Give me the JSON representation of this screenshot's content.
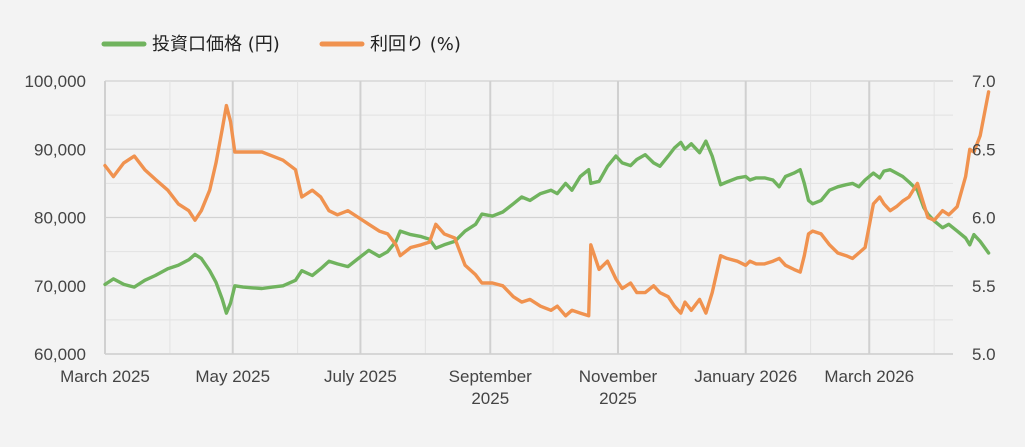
{
  "chart_data": {
    "type": "line",
    "title": "",
    "legend_position": "top-left",
    "grid": true,
    "x_axis": {
      "range": [
        "2025-03-01",
        "2026-04-10"
      ],
      "ticks": [
        {
          "date": "2025-03-01",
          "label": [
            "March 2025"
          ]
        },
        {
          "date": "2025-05-01",
          "label": [
            "May 2025"
          ]
        },
        {
          "date": "2025-07-01",
          "label": [
            "July 2025"
          ]
        },
        {
          "date": "2025-09-01",
          "label": [
            "September",
            "2025"
          ]
        },
        {
          "date": "2025-11-01",
          "label": [
            "November",
            "2025"
          ]
        },
        {
          "date": "2026-01-01",
          "label": [
            "January 2026"
          ]
        },
        {
          "date": "2026-03-01",
          "label": [
            "March 2026"
          ]
        }
      ]
    },
    "y_left": {
      "ylim": [
        60000,
        100000
      ],
      "ticks": [
        60000,
        70000,
        80000,
        90000,
        100000
      ],
      "tick_labels": [
        "60,000",
        "70,000",
        "80,000",
        "90,000",
        "100,000"
      ]
    },
    "y_right": {
      "ylim": [
        5.0,
        7.0
      ],
      "ticks": [
        5.0,
        5.5,
        6.0,
        6.5,
        7.0
      ],
      "tick_labels": [
        "5.0",
        "5.5",
        "6.0",
        "6.5",
        "7.0"
      ]
    },
    "series": [
      {
        "name": "投資口価格 (円)",
        "axis": "left",
        "color": "#70b35e",
        "points": [
          [
            "2025-03-01",
            70200
          ],
          [
            "2025-03-05",
            71000
          ],
          [
            "2025-03-10",
            70200
          ],
          [
            "2025-03-15",
            69800
          ],
          [
            "2025-03-20",
            70800
          ],
          [
            "2025-03-25",
            71500
          ],
          [
            "2025-03-31",
            72500
          ],
          [
            "2025-04-05",
            73000
          ],
          [
            "2025-04-10",
            73800
          ],
          [
            "2025-04-13",
            74600
          ],
          [
            "2025-04-16",
            74000
          ],
          [
            "2025-04-20",
            72200
          ],
          [
            "2025-04-23",
            70500
          ],
          [
            "2025-04-26",
            68000
          ],
          [
            "2025-04-28",
            66000
          ],
          [
            "2025-04-30",
            67500
          ],
          [
            "2025-05-02",
            70000
          ],
          [
            "2025-05-06",
            69800
          ],
          [
            "2025-05-10",
            69700
          ],
          [
            "2025-05-15",
            69600
          ],
          [
            "2025-05-20",
            69800
          ],
          [
            "2025-05-25",
            70000
          ],
          [
            "2025-05-31",
            70800
          ],
          [
            "2025-06-03",
            72200
          ],
          [
            "2025-06-08",
            71500
          ],
          [
            "2025-06-12",
            72500
          ],
          [
            "2025-06-16",
            73600
          ],
          [
            "2025-06-20",
            73200
          ],
          [
            "2025-06-25",
            72800
          ],
          [
            "2025-06-30",
            74000
          ],
          [
            "2025-07-05",
            75200
          ],
          [
            "2025-07-10",
            74300
          ],
          [
            "2025-07-14",
            75000
          ],
          [
            "2025-07-18",
            76500
          ],
          [
            "2025-07-20",
            78000
          ],
          [
            "2025-07-25",
            77500
          ],
          [
            "2025-07-30",
            77200
          ],
          [
            "2025-08-03",
            76800
          ],
          [
            "2025-08-06",
            75500
          ],
          [
            "2025-08-10",
            76000
          ],
          [
            "2025-08-15",
            76500
          ],
          [
            "2025-08-20",
            78000
          ],
          [
            "2025-08-25",
            79000
          ],
          [
            "2025-08-28",
            80500
          ],
          [
            "2025-09-02",
            80200
          ],
          [
            "2025-09-07",
            80800
          ],
          [
            "2025-09-12",
            82000
          ],
          [
            "2025-09-16",
            83000
          ],
          [
            "2025-09-20",
            82500
          ],
          [
            "2025-09-25",
            83500
          ],
          [
            "2025-09-30",
            84000
          ],
          [
            "2025-10-03",
            83500
          ],
          [
            "2025-10-07",
            85000
          ],
          [
            "2025-10-10",
            84000
          ],
          [
            "2025-10-14",
            86000
          ],
          [
            "2025-10-18",
            87000
          ],
          [
            "2025-10-19",
            85000
          ],
          [
            "2025-10-23",
            85300
          ],
          [
            "2025-10-27",
            87500
          ],
          [
            "2025-10-31",
            89000
          ],
          [
            "2025-11-03",
            88000
          ],
          [
            "2025-11-07",
            87600
          ],
          [
            "2025-11-10",
            88500
          ],
          [
            "2025-11-14",
            89200
          ],
          [
            "2025-11-18",
            88000
          ],
          [
            "2025-11-21",
            87500
          ],
          [
            "2025-11-25",
            89000
          ],
          [
            "2025-11-28",
            90200
          ],
          [
            "2025-12-01",
            91000
          ],
          [
            "2025-12-03",
            90000
          ],
          [
            "2025-12-06",
            90800
          ],
          [
            "2025-12-10",
            89500
          ],
          [
            "2025-12-13",
            91200
          ],
          [
            "2025-12-16",
            89000
          ],
          [
            "2025-12-20",
            84800
          ],
          [
            "2025-12-23",
            85200
          ],
          [
            "2025-12-28",
            85800
          ],
          [
            "2026-01-01",
            86000
          ],
          [
            "2026-01-03",
            85500
          ],
          [
            "2026-01-06",
            85800
          ],
          [
            "2026-01-10",
            85800
          ],
          [
            "2026-01-14",
            85500
          ],
          [
            "2026-01-17",
            84500
          ],
          [
            "2026-01-20",
            86000
          ],
          [
            "2026-01-24",
            86500
          ],
          [
            "2026-01-27",
            87000
          ],
          [
            "2026-01-29",
            85000
          ],
          [
            "2026-01-31",
            82500
          ],
          [
            "2026-02-02",
            82000
          ],
          [
            "2026-02-06",
            82500
          ],
          [
            "2026-02-10",
            84000
          ],
          [
            "2026-02-14",
            84500
          ],
          [
            "2026-02-18",
            84800
          ],
          [
            "2026-02-21",
            85000
          ],
          [
            "2026-02-24",
            84500
          ],
          [
            "2026-02-27",
            85500
          ],
          [
            "2026-03-03",
            86500
          ],
          [
            "2026-03-06",
            85800
          ],
          [
            "2026-03-08",
            86800
          ],
          [
            "2026-03-11",
            87000
          ],
          [
            "2026-03-14",
            86500
          ],
          [
            "2026-03-17",
            86000
          ],
          [
            "2026-03-20",
            85200
          ],
          [
            "2026-03-24",
            84000
          ],
          [
            "2026-03-27",
            81500
          ],
          [
            "2026-03-29",
            80500
          ],
          [
            "2026-04-01",
            79500
          ],
          [
            "2026-04-05",
            78500
          ],
          [
            "2026-04-08",
            79000
          ],
          [
            "2026-04-12",
            78000
          ],
          [
            "2026-04-16",
            77000
          ],
          [
            "2026-04-18",
            76000
          ],
          [
            "2026-04-20",
            77500
          ],
          [
            "2026-04-23",
            76500
          ],
          [
            "2026-04-27",
            74800
          ]
        ]
      },
      {
        "name": "利回り (%)",
        "axis": "right",
        "color": "#f0924f",
        "points": [
          [
            "2025-03-01",
            6.38
          ],
          [
            "2025-03-05",
            6.3
          ],
          [
            "2025-03-10",
            6.4
          ],
          [
            "2025-03-15",
            6.45
          ],
          [
            "2025-03-20",
            6.35
          ],
          [
            "2025-03-25",
            6.28
          ],
          [
            "2025-03-31",
            6.2
          ],
          [
            "2025-04-05",
            6.1
          ],
          [
            "2025-04-10",
            6.05
          ],
          [
            "2025-04-13",
            5.98
          ],
          [
            "2025-04-16",
            6.05
          ],
          [
            "2025-04-20",
            6.2
          ],
          [
            "2025-04-23",
            6.4
          ],
          [
            "2025-04-26",
            6.65
          ],
          [
            "2025-04-28",
            6.82
          ],
          [
            "2025-04-30",
            6.7
          ],
          [
            "2025-05-02",
            6.48
          ],
          [
            "2025-05-06",
            6.48
          ],
          [
            "2025-05-10",
            6.48
          ],
          [
            "2025-05-15",
            6.48
          ],
          [
            "2025-05-20",
            6.45
          ],
          [
            "2025-05-25",
            6.42
          ],
          [
            "2025-05-31",
            6.35
          ],
          [
            "2025-06-03",
            6.15
          ],
          [
            "2025-06-08",
            6.2
          ],
          [
            "2025-06-12",
            6.15
          ],
          [
            "2025-06-16",
            6.05
          ],
          [
            "2025-06-20",
            6.02
          ],
          [
            "2025-06-25",
            6.05
          ],
          [
            "2025-06-30",
            6.0
          ],
          [
            "2025-07-05",
            5.95
          ],
          [
            "2025-07-10",
            5.9
          ],
          [
            "2025-07-14",
            5.88
          ],
          [
            "2025-07-18",
            5.8
          ],
          [
            "2025-07-20",
            5.72
          ],
          [
            "2025-07-25",
            5.78
          ],
          [
            "2025-07-30",
            5.8
          ],
          [
            "2025-08-03",
            5.82
          ],
          [
            "2025-08-06",
            5.95
          ],
          [
            "2025-08-10",
            5.88
          ],
          [
            "2025-08-15",
            5.85
          ],
          [
            "2025-08-20",
            5.65
          ],
          [
            "2025-08-25",
            5.58
          ],
          [
            "2025-08-28",
            5.52
          ],
          [
            "2025-09-02",
            5.52
          ],
          [
            "2025-09-07",
            5.5
          ],
          [
            "2025-09-12",
            5.42
          ],
          [
            "2025-09-16",
            5.38
          ],
          [
            "2025-09-20",
            5.4
          ],
          [
            "2025-09-25",
            5.35
          ],
          [
            "2025-09-30",
            5.32
          ],
          [
            "2025-10-03",
            5.35
          ],
          [
            "2025-10-07",
            5.28
          ],
          [
            "2025-10-10",
            5.32
          ],
          [
            "2025-10-14",
            5.3
          ],
          [
            "2025-10-18",
            5.28
          ],
          [
            "2025-10-19",
            5.8
          ],
          [
            "2025-10-23",
            5.62
          ],
          [
            "2025-10-27",
            5.68
          ],
          [
            "2025-10-31",
            5.55
          ],
          [
            "2025-11-03",
            5.48
          ],
          [
            "2025-11-07",
            5.52
          ],
          [
            "2025-11-10",
            5.45
          ],
          [
            "2025-11-14",
            5.45
          ],
          [
            "2025-11-18",
            5.5
          ],
          [
            "2025-11-21",
            5.45
          ],
          [
            "2025-11-25",
            5.42
          ],
          [
            "2025-11-28",
            5.35
          ],
          [
            "2025-12-01",
            5.3
          ],
          [
            "2025-12-03",
            5.38
          ],
          [
            "2025-12-06",
            5.32
          ],
          [
            "2025-12-10",
            5.4
          ],
          [
            "2025-12-13",
            5.3
          ],
          [
            "2025-12-16",
            5.45
          ],
          [
            "2025-12-20",
            5.72
          ],
          [
            "2025-12-23",
            5.7
          ],
          [
            "2025-12-28",
            5.68
          ],
          [
            "2026-01-01",
            5.65
          ],
          [
            "2026-01-03",
            5.68
          ],
          [
            "2026-01-06",
            5.66
          ],
          [
            "2026-01-10",
            5.66
          ],
          [
            "2026-01-14",
            5.68
          ],
          [
            "2026-01-17",
            5.7
          ],
          [
            "2026-01-20",
            5.65
          ],
          [
            "2026-01-24",
            5.62
          ],
          [
            "2026-01-27",
            5.6
          ],
          [
            "2026-01-29",
            5.72
          ],
          [
            "2026-01-31",
            5.88
          ],
          [
            "2026-02-02",
            5.9
          ],
          [
            "2026-02-06",
            5.88
          ],
          [
            "2026-02-10",
            5.8
          ],
          [
            "2026-02-14",
            5.74
          ],
          [
            "2026-02-18",
            5.72
          ],
          [
            "2026-02-21",
            5.7
          ],
          [
            "2026-02-24",
            5.74
          ],
          [
            "2026-02-27",
            5.78
          ],
          [
            "2026-03-03",
            6.1
          ],
          [
            "2026-03-06",
            6.15
          ],
          [
            "2026-03-08",
            6.1
          ],
          [
            "2026-03-11",
            6.05
          ],
          [
            "2026-03-14",
            6.08
          ],
          [
            "2026-03-17",
            6.12
          ],
          [
            "2026-03-20",
            6.15
          ],
          [
            "2026-03-24",
            6.25
          ],
          [
            "2026-03-27",
            6.1
          ],
          [
            "2026-03-29",
            6.0
          ],
          [
            "2026-04-01",
            5.98
          ],
          [
            "2026-04-05",
            6.05
          ],
          [
            "2026-04-08",
            6.02
          ],
          [
            "2026-04-12",
            6.08
          ],
          [
            "2026-04-16",
            6.3
          ],
          [
            "2026-04-18",
            6.5
          ],
          [
            "2026-04-20",
            6.48
          ],
          [
            "2026-04-23",
            6.6
          ],
          [
            "2026-04-27",
            6.92
          ]
        ]
      }
    ]
  }
}
